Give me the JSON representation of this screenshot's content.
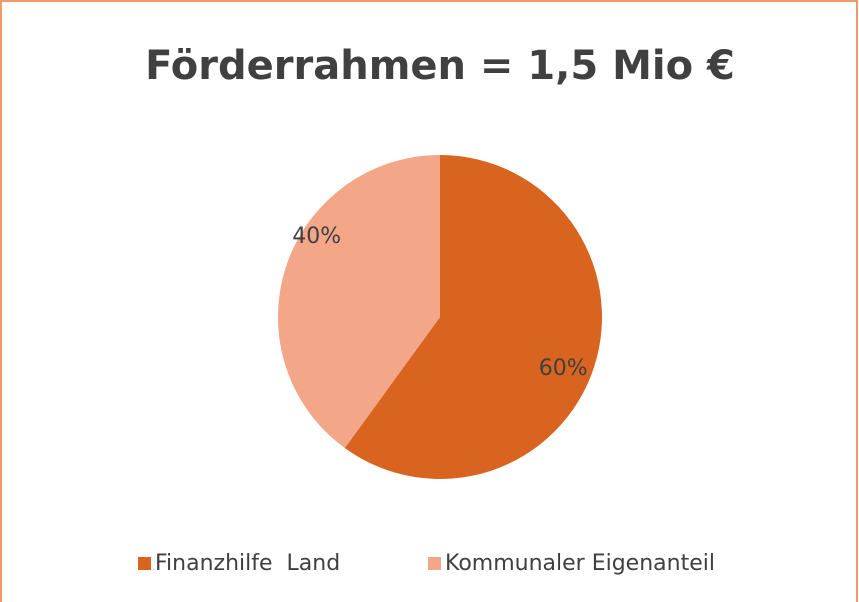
{
  "chart_data": {
    "type": "pie",
    "title": "Förderrahmen = 1,5 Mio €",
    "categories": [
      "Finanzhilfe  Land",
      "Kommunaler Eigenanteil"
    ],
    "values": [
      60,
      40
    ],
    "value_labels": [
      "60%",
      "40%"
    ],
    "colors": [
      "#d8641f",
      "#f4a688"
    ],
    "legend": "bottom"
  }
}
